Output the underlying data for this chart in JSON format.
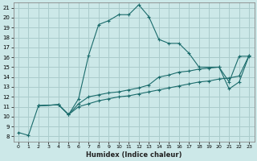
{
  "xlabel": "Humidex (Indice chaleur)",
  "background_color": "#cce8e8",
  "grid_color": "#aacccc",
  "line_color": "#1a6b6b",
  "xlim": [
    -0.5,
    23.5
  ],
  "ylim": [
    7.5,
    21.5
  ],
  "xticks": [
    0,
    1,
    2,
    3,
    4,
    5,
    6,
    7,
    8,
    9,
    10,
    11,
    12,
    13,
    14,
    15,
    16,
    17,
    18,
    19,
    20,
    21,
    22,
    23
  ],
  "yticks": [
    8,
    9,
    10,
    11,
    12,
    13,
    14,
    15,
    16,
    17,
    18,
    19,
    20,
    21
  ],
  "series1_x": [
    0,
    1,
    2,
    4,
    5,
    6,
    7,
    8,
    9,
    10,
    11,
    12,
    13,
    14,
    15,
    16,
    17,
    18,
    20,
    21,
    22,
    23
  ],
  "series1_y": [
    8.4,
    8.1,
    11.1,
    11.2,
    10.2,
    11.8,
    16.2,
    19.3,
    19.7,
    20.3,
    20.3,
    21.3,
    20.1,
    17.8,
    17.4,
    17.4,
    16.4,
    15.0,
    15.0,
    13.5,
    16.1,
    16.1
  ],
  "series2_x": [
    2,
    4,
    5,
    6,
    7,
    8,
    9,
    10,
    11,
    12,
    13,
    14,
    15,
    16,
    17,
    18,
    19,
    20,
    21,
    22,
    23
  ],
  "series2_y": [
    11.1,
    11.2,
    10.2,
    11.3,
    12.0,
    12.2,
    12.4,
    12.5,
    12.7,
    12.9,
    13.2,
    14.0,
    14.2,
    14.5,
    14.6,
    14.8,
    14.9,
    15.0,
    12.8,
    13.5,
    16.2
  ],
  "series3_x": [
    2,
    4,
    5,
    6,
    7,
    8,
    9,
    10,
    11,
    12,
    13,
    14,
    15,
    16,
    17,
    18,
    19,
    20,
    21,
    22,
    23
  ],
  "series3_y": [
    11.1,
    11.2,
    10.2,
    11.0,
    11.3,
    11.6,
    11.8,
    12.0,
    12.1,
    12.3,
    12.5,
    12.7,
    12.9,
    13.1,
    13.3,
    13.5,
    13.6,
    13.8,
    13.9,
    14.1,
    16.2
  ]
}
